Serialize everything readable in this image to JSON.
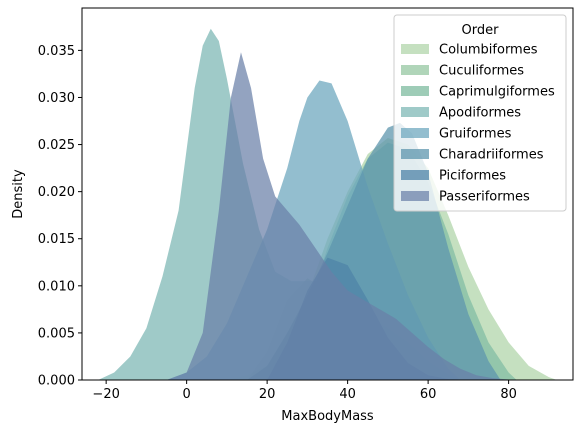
{
  "chart_data": {
    "type": "area",
    "xlabel": "MaxBodyMass",
    "ylabel": "Density",
    "xlim": [
      -26,
      96
    ],
    "ylim": [
      0,
      0.0395
    ],
    "xticks": [
      -20,
      0,
      20,
      40,
      60,
      80
    ],
    "yticks": [
      0.0,
      0.005,
      0.01,
      0.015,
      0.02,
      0.025,
      0.03,
      0.035
    ],
    "ytick_labels": [
      "0.000",
      "0.005",
      "0.010",
      "0.015",
      "0.020",
      "0.025",
      "0.030",
      "0.035"
    ],
    "legend": {
      "title": "Order",
      "placement": "top-right"
    },
    "series": [
      {
        "name": "Columbiformes",
        "color": "#b6d8b0",
        "opacity": 0.8,
        "x": [
          10,
          15,
          20,
          25,
          30,
          35,
          40,
          45,
          50,
          55,
          60,
          65,
          70,
          75,
          80,
          85,
          90,
          92
        ],
        "y": [
          0,
          0.0005,
          0.0015,
          0.004,
          0.009,
          0.015,
          0.02,
          0.024,
          0.0257,
          0.025,
          0.0225,
          0.0175,
          0.012,
          0.0075,
          0.004,
          0.0015,
          0.0003,
          0
        ]
      },
      {
        "name": "Cuculiformes",
        "color": "#9ccaa8",
        "opacity": 0.8,
        "x": [
          15,
          20,
          25,
          30,
          35,
          40,
          45,
          50,
          55,
          58
        ],
        "y": [
          0,
          0.003,
          0.0085,
          0.0108,
          0.0095,
          0.0068,
          0.004,
          0.0017,
          0.0003,
          0
        ]
      },
      {
        "name": "Caprimulgiformes",
        "color": "#86bfa5",
        "opacity": 0.8,
        "x": [
          20,
          25,
          30,
          35,
          40,
          45,
          50,
          55,
          60,
          65,
          70,
          75,
          80,
          82
        ],
        "y": [
          0,
          0.002,
          0.0075,
          0.014,
          0.0195,
          0.0235,
          0.0252,
          0.0245,
          0.021,
          0.0155,
          0.009,
          0.004,
          0.0008,
          0
        ]
      },
      {
        "name": "Apodiformes",
        "color": "#7fb8b6",
        "opacity": 0.75,
        "x": [
          -22,
          -18,
          -14,
          -10,
          -6,
          -2,
          0,
          2,
          4,
          6,
          8,
          10,
          14,
          18,
          22,
          26,
          30,
          34,
          38,
          42,
          46,
          50,
          55,
          60,
          65,
          68
        ],
        "y": [
          0,
          0.0008,
          0.0025,
          0.0055,
          0.011,
          0.018,
          0.0245,
          0.031,
          0.0355,
          0.0373,
          0.036,
          0.032,
          0.023,
          0.016,
          0.0115,
          0.0105,
          0.0105,
          0.0105,
          0.0095,
          0.008,
          0.0065,
          0.0055,
          0.004,
          0.002,
          0.0006,
          0
        ]
      },
      {
        "name": "Gruiformes",
        "color": "#6fa8bf",
        "opacity": 0.75,
        "x": [
          -5,
          0,
          5,
          10,
          15,
          20,
          25,
          28,
          30,
          33,
          36,
          40,
          45,
          50,
          55,
          60,
          65,
          68
        ],
        "y": [
          0,
          0.0008,
          0.0025,
          0.006,
          0.011,
          0.016,
          0.0225,
          0.0275,
          0.03,
          0.0318,
          0.0315,
          0.0275,
          0.0205,
          0.0145,
          0.009,
          0.0045,
          0.0012,
          0
        ]
      },
      {
        "name": "Charadriiformes",
        "color": "#5e96ae",
        "opacity": 0.75,
        "x": [
          15,
          20,
          25,
          30,
          35,
          40,
          45,
          50,
          53,
          56,
          60,
          65,
          70,
          75,
          78
        ],
        "y": [
          0,
          0.0015,
          0.005,
          0.009,
          0.0135,
          0.0185,
          0.0235,
          0.0268,
          0.0273,
          0.0262,
          0.022,
          0.014,
          0.007,
          0.002,
          0
        ]
      },
      {
        "name": "Piciformes",
        "color": "#4f84a8",
        "opacity": 0.75,
        "x": [
          20,
          25,
          30,
          35,
          40,
          45,
          50,
          55,
          60,
          65,
          70,
          75
        ],
        "y": [
          0,
          0.004,
          0.0095,
          0.013,
          0.0122,
          0.0085,
          0.0045,
          0.0018,
          0.0005,
          0.0001,
          0,
          0
        ]
      },
      {
        "name": "Passeriformes",
        "color": "#6a7fa8",
        "opacity": 0.72,
        "x": [
          -5,
          0,
          4,
          8,
          11,
          13.5,
          16,
          19,
          22,
          25,
          28,
          32,
          36,
          40,
          44,
          48,
          52,
          56,
          60,
          64,
          68,
          72,
          76,
          80,
          84
        ],
        "y": [
          0,
          0.0008,
          0.005,
          0.018,
          0.03,
          0.0348,
          0.031,
          0.0235,
          0.0195,
          0.018,
          0.0165,
          0.014,
          0.0115,
          0.0095,
          0.0085,
          0.0075,
          0.0065,
          0.005,
          0.0035,
          0.0022,
          0.0012,
          0.0005,
          0.0002,
          5e-05,
          0
        ]
      }
    ]
  }
}
